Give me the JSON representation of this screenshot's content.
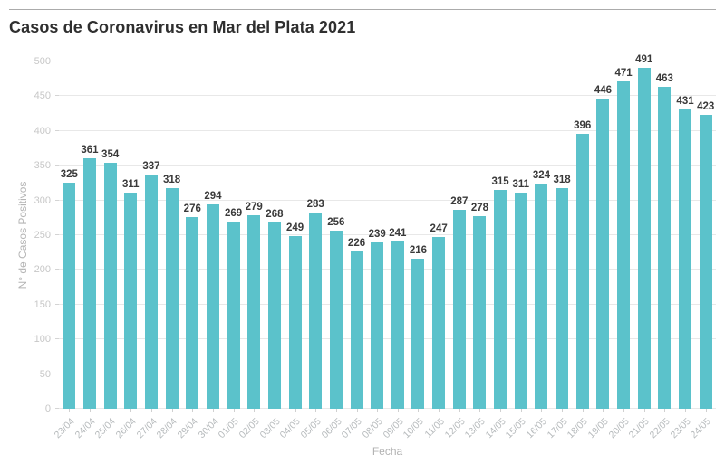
{
  "header": {
    "title": "Casos de Coronavirus en Mar del Plata 2021"
  },
  "colors": {
    "bar": "#5bc2cb",
    "bar_value_label": "#3a3a3a",
    "axis_tick_text": "#c7c7c7",
    "axis_title_text": "#b5b5b5",
    "gridline": "#e8e8e8",
    "top_rule": "#ababab",
    "background": "#ffffff"
  },
  "chart_data": {
    "type": "bar",
    "title": "Casos de Coronavirus en Mar del Plata 2021",
    "xlabel": "Fecha",
    "ylabel": "N° de Casos Positivos",
    "categories": [
      "23/04",
      "24/04",
      "25/04",
      "26/04",
      "27/04",
      "28/04",
      "29/04",
      "30/04",
      "01/05",
      "02/05",
      "03/05",
      "04/05",
      "05/05",
      "06/05",
      "07/05",
      "08/05",
      "09/05",
      "10/05",
      "11/05",
      "12/05",
      "13/05",
      "14/05",
      "15/05",
      "16/05",
      "17/05",
      "18/05",
      "19/05",
      "20/05",
      "21/05",
      "22/05",
      "23/05",
      "24/05"
    ],
    "values": [
      325,
      361,
      354,
      311,
      337,
      318,
      276,
      294,
      269,
      279,
      268,
      249,
      283,
      256,
      226,
      239,
      241,
      216,
      247,
      287,
      278,
      315,
      311,
      324,
      318,
      396,
      446,
      471,
      491,
      463,
      431,
      423
    ],
    "ylim": [
      0,
      500
    ],
    "yticks": [
      0,
      50,
      100,
      150,
      200,
      250,
      300,
      350,
      400,
      450,
      500
    ],
    "grid": true,
    "legend": "none",
    "bar_color": "#5bc2cb"
  }
}
